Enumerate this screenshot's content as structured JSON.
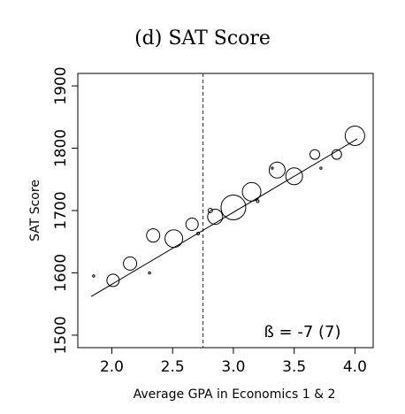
{
  "chart_data": {
    "type": "scatter",
    "title": "(d) SAT Score",
    "xlabel": "Average GPA in Economics 1 & 2",
    "ylabel": "SAT Score",
    "xlim": [
      1.72,
      4.15
    ],
    "ylim": [
      1480,
      1920
    ],
    "xticks": [
      "2.0",
      "2.5",
      "3.0",
      "3.5",
      "4.0"
    ],
    "yticks": [
      "1500",
      "1600",
      "1700",
      "1800",
      "1900"
    ],
    "xtick_values": [
      2.0,
      2.5,
      3.0,
      3.5,
      4.0
    ],
    "ytick_values": [
      1500,
      1600,
      1700,
      1800,
      1900
    ],
    "grid": false,
    "cutoff": 2.75,
    "fit_line": {
      "x": [
        1.83,
        4.02
      ],
      "y": [
        1562,
        1815
      ]
    },
    "annotation": "ß = -7 (7)",
    "points": [
      {
        "x": 1.85,
        "y": 1595,
        "r": 1.2
      },
      {
        "x": 2.01,
        "y": 1588,
        "r": 7.0
      },
      {
        "x": 2.15,
        "y": 1615,
        "r": 7.5
      },
      {
        "x": 2.31,
        "y": 1600,
        "r": 1.2
      },
      {
        "x": 2.34,
        "y": 1660,
        "r": 7.5
      },
      {
        "x": 2.51,
        "y": 1655,
        "r": 10.0
      },
      {
        "x": 2.66,
        "y": 1678,
        "r": 7.0
      },
      {
        "x": 2.71,
        "y": 1663,
        "r": 1.5
      },
      {
        "x": 2.81,
        "y": 1700,
        "r": 2.5
      },
      {
        "x": 2.85,
        "y": 1690,
        "r": 8.5
      },
      {
        "x": 3.0,
        "y": 1705,
        "r": 14.0
      },
      {
        "x": 3.15,
        "y": 1730,
        "r": 10.5
      },
      {
        "x": 3.2,
        "y": 1715,
        "r": 1.5
      },
      {
        "x": 3.32,
        "y": 1768,
        "r": 1.2
      },
      {
        "x": 3.36,
        "y": 1765,
        "r": 9.0
      },
      {
        "x": 3.5,
        "y": 1755,
        "r": 9.5
      },
      {
        "x": 3.67,
        "y": 1790,
        "r": 5.5
      },
      {
        "x": 3.72,
        "y": 1768,
        "r": 1.2
      },
      {
        "x": 3.85,
        "y": 1790,
        "r": 5.5
      },
      {
        "x": 4.0,
        "y": 1820,
        "r": 11.0
      }
    ]
  }
}
